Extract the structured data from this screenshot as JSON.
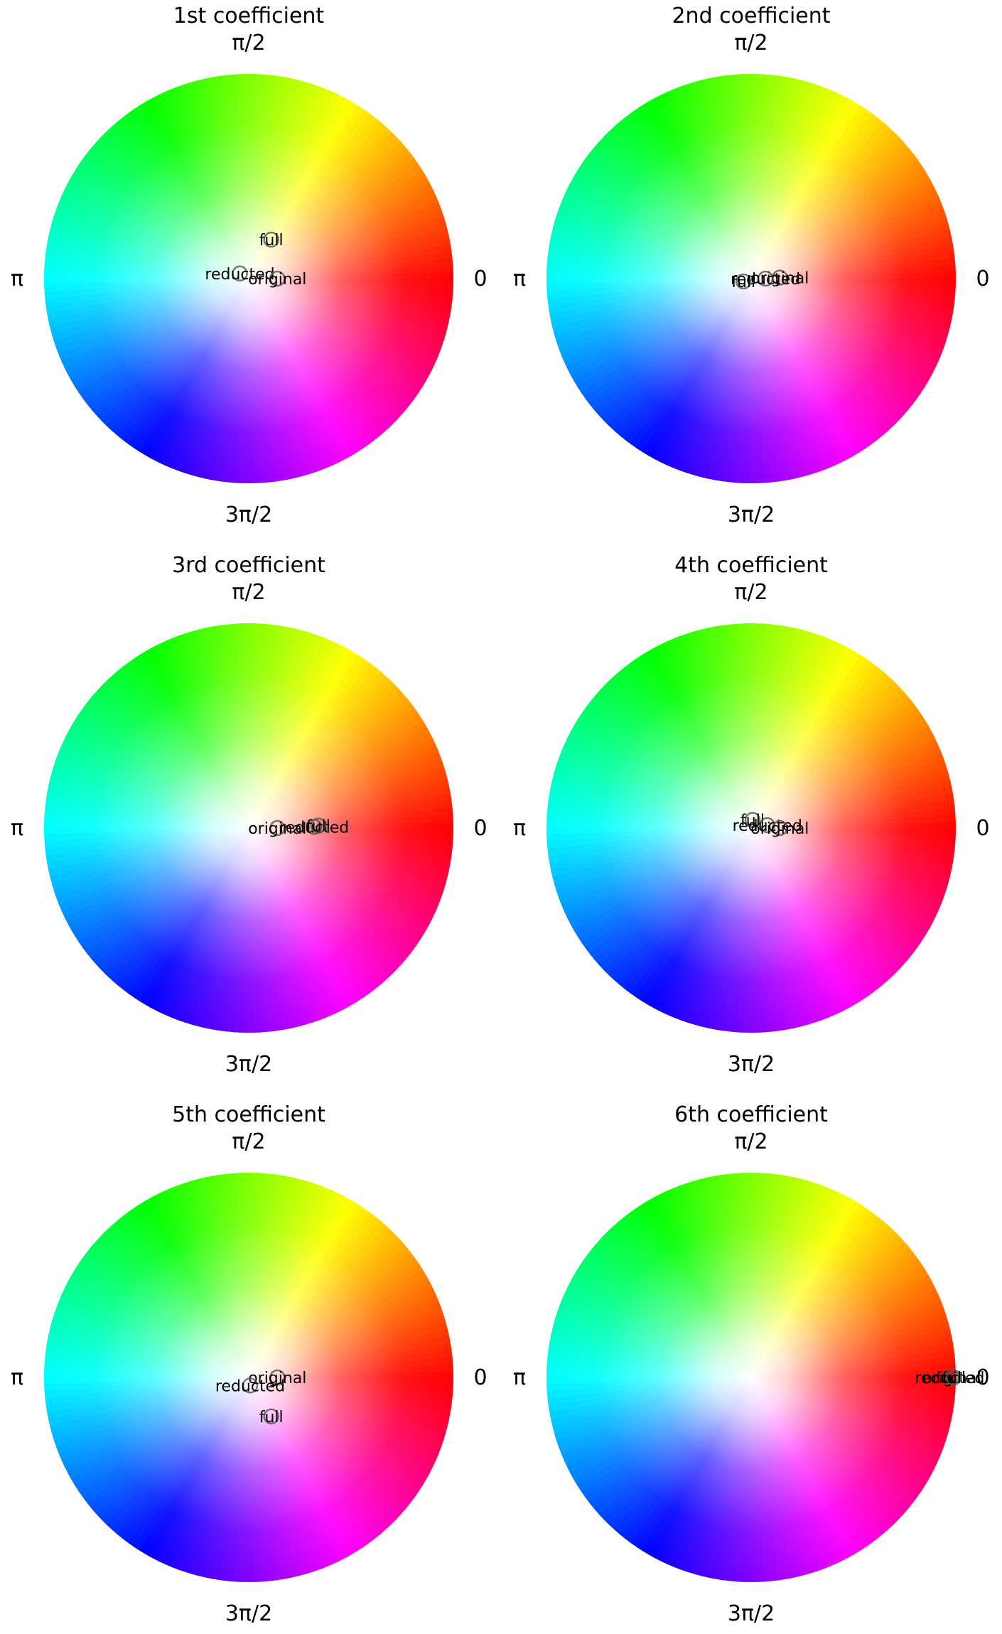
{
  "chart_data": [
    {
      "type": "scatter",
      "title": "1st coefficient",
      "angle_ticks": [
        "0",
        "π/2",
        "π",
        "3π/2"
      ],
      "points": [
        {
          "label": "full",
          "magnitude": 0.22,
          "phase_deg": 60
        },
        {
          "label": "reducted",
          "magnitude": 0.05,
          "phase_deg": 150
        },
        {
          "label": "original",
          "magnitude": 0.14,
          "phase_deg": 0
        }
      ]
    },
    {
      "type": "scatter",
      "title": "2nd coefficient",
      "angle_ticks": [
        "0",
        "π/2",
        "π",
        "3π/2"
      ],
      "points": [
        {
          "label": "original",
          "magnitude": 0.14,
          "phase_deg": 2
        },
        {
          "label": "reducted",
          "magnitude": 0.07,
          "phase_deg": 0
        },
        {
          "label": "full",
          "magnitude": 0.04,
          "phase_deg": 200
        }
      ]
    },
    {
      "type": "scatter",
      "title": "3rd coefficient",
      "angle_ticks": [
        "0",
        "π/2",
        "π",
        "3π/2"
      ],
      "points": [
        {
          "label": "original",
          "magnitude": 0.14,
          "phase_deg": 0
        },
        {
          "label": "reducted",
          "magnitude": 0.32,
          "phase_deg": 1
        },
        {
          "label": "full",
          "magnitude": 0.34,
          "phase_deg": 2
        }
      ]
    },
    {
      "type": "scatter",
      "title": "4th coefficient",
      "angle_ticks": [
        "0",
        "π/2",
        "π",
        "3π/2"
      ],
      "points": [
        {
          "label": "full",
          "magnitude": 0.04,
          "phase_deg": 80
        },
        {
          "label": "reducted",
          "magnitude": 0.08,
          "phase_deg": 10
        },
        {
          "label": "original",
          "magnitude": 0.14,
          "phase_deg": 0
        }
      ]
    },
    {
      "type": "scatter",
      "title": "5th coefficient",
      "angle_ticks": [
        "0",
        "π/2",
        "π",
        "3π/2"
      ],
      "points": [
        {
          "label": "original",
          "magnitude": 0.14,
          "phase_deg": 0
        },
        {
          "label": "reducted",
          "magnitude": 0.04,
          "phase_deg": 280
        },
        {
          "label": "full",
          "magnitude": 0.22,
          "phase_deg": 300
        }
      ]
    },
    {
      "type": "scatter",
      "title": "6th coefficient",
      "angle_ticks": [
        "0",
        "π/2",
        "π",
        "3π/2"
      ],
      "points": [
        {
          "label": "reducted",
          "magnitude": 0.97,
          "phase_deg": 0
        },
        {
          "label": "original",
          "magnitude": 0.98,
          "phase_deg": 0
        },
        {
          "label": "full",
          "magnitude": 0.99,
          "phase_deg": 0
        }
      ]
    }
  ]
}
